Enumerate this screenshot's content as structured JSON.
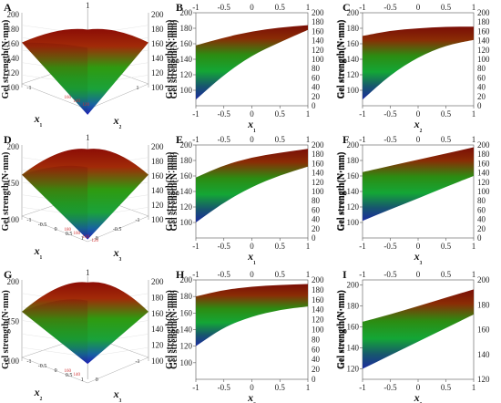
{
  "figure": {
    "shared_ylabel": "Gel strength(N·mm)"
  },
  "chart_data": [
    {
      "panel": "A",
      "type": "surface",
      "view": "3d",
      "xlabel": "x₁",
      "ylabel": "x₂",
      "zlabel": "Gel strength(N·mm)",
      "z_ticks_left": [
        "200",
        "180",
        "160",
        "140",
        "120",
        "100"
      ],
      "z_ticks_right": [
        "200",
        "180",
        "160",
        "140",
        "120",
        "100"
      ],
      "x_ticks": [
        "-1"
      ],
      "y_ticks": [
        "1"
      ],
      "top_ticks": [
        "1"
      ],
      "contour_labels": [
        "160",
        "140",
        "120"
      ],
      "z_range": [
        80,
        205
      ],
      "surface": {
        "peak": 175,
        "edge": 165,
        "valley": 90
      }
    },
    {
      "panel": "B",
      "type": "area_band",
      "view": "side",
      "xlabel": "x₁",
      "ylabel": "Gel strength(N·mm)",
      "x": [
        -1,
        -0.5,
        0,
        0.5,
        1
      ],
      "x_ticks": [
        "-1",
        "-0.5",
        "0",
        "0.5",
        "1"
      ],
      "top_ticks": [
        "-1",
        "-0.5",
        "0",
        "0.5",
        "1"
      ],
      "y_ticks": [
        "100",
        "120",
        "140",
        "160",
        "180",
        "200"
      ],
      "y_ticks_right": [
        "0",
        "20",
        "40",
        "60",
        "80",
        "100",
        "120",
        "140",
        "160",
        "180",
        "200"
      ],
      "ylim": [
        80,
        200
      ],
      "upper": [
        158,
        168,
        176,
        181,
        184
      ],
      "lower": [
        88,
        120,
        145,
        162,
        178
      ]
    },
    {
      "panel": "C",
      "type": "area_band",
      "view": "side",
      "xlabel": "x₂",
      "ylabel": "Gel strength(N·mm)",
      "x": [
        -1,
        -0.5,
        0,
        0.5,
        1
      ],
      "x_ticks": [
        "-1",
        "-0.5",
        "0",
        "0.5",
        "1"
      ],
      "top_ticks": [
        "-1",
        "-0.5",
        "0",
        "0.5",
        "1"
      ],
      "y_ticks": [
        "100",
        "120",
        "140",
        "160",
        "180",
        "200"
      ],
      "y_ticks_right": [
        "0",
        "20",
        "40",
        "60",
        "80",
        "100",
        "120",
        "140",
        "160",
        "180",
        "200"
      ],
      "ylim": [
        80,
        200
      ],
      "upper": [
        170,
        177,
        180,
        182,
        182
      ],
      "lower": [
        88,
        120,
        143,
        158,
        165
      ]
    },
    {
      "panel": "D",
      "type": "surface",
      "view": "3d",
      "xlabel": "x₁",
      "ylabel": "x₃",
      "zlabel": "Gel strength(N·mm)",
      "z_ticks_left": [
        "200",
        "150",
        "100"
      ],
      "z_ticks_right": [
        "200",
        "180",
        "160",
        "140",
        "120",
        "100"
      ],
      "x_ticks": [
        "-1",
        "-0.5",
        "0",
        "0.5",
        "1"
      ],
      "y_ticks": [
        "0",
        "-0.5",
        "-1"
      ],
      "top_ticks": [
        "1"
      ],
      "contour_labels": [
        "180",
        "160",
        "140",
        "120"
      ],
      "z_range": [
        80,
        205
      ],
      "surface": {
        "peak": 192,
        "edge": 165,
        "valley": 100
      }
    },
    {
      "panel": "E",
      "type": "area_band",
      "view": "side",
      "xlabel": "x₁",
      "ylabel": "Gel strength(N·mm)",
      "x": [
        -1,
        -0.5,
        0,
        0.5,
        1
      ],
      "x_ticks": [
        "-1",
        "-0.5",
        "0",
        "0.5",
        "1"
      ],
      "top_ticks": [
        "-1",
        "-0.5",
        "0",
        "0.5",
        "1"
      ],
      "y_ticks": [
        "100",
        "120",
        "140",
        "160",
        "180",
        "200"
      ],
      "y_ticks_right": [
        "0",
        "20",
        "40",
        "60",
        "80",
        "100",
        "120",
        "140",
        "160",
        "180",
        "200"
      ],
      "ylim": [
        80,
        200
      ],
      "upper": [
        158,
        174,
        184,
        190,
        195
      ],
      "lower": [
        100,
        126,
        146,
        161,
        172
      ]
    },
    {
      "panel": "F",
      "type": "area_band",
      "view": "side",
      "xlabel": "x₃",
      "ylabel": "Gel strength(N·mm)",
      "x": [
        -1,
        -0.5,
        0,
        0.5,
        1
      ],
      "x_ticks": [
        "-1",
        "-0.5",
        "0",
        "0.5",
        "1"
      ],
      "top_ticks": [
        "-1",
        "-0.5",
        "0",
        "0.5",
        "1"
      ],
      "y_ticks": [
        "100",
        "120",
        "140",
        "160",
        "180",
        "200"
      ],
      "y_ticks_right": [
        "0",
        "20",
        "40",
        "60",
        "80",
        "100",
        "120",
        "140",
        "160",
        "180",
        "200"
      ],
      "ylim": [
        80,
        200
      ],
      "upper": [
        165,
        173,
        181,
        189,
        197
      ],
      "lower": [
        102,
        117,
        131,
        146,
        160
      ]
    },
    {
      "panel": "G",
      "type": "surface",
      "view": "3d",
      "xlabel": "x₂",
      "ylabel": "x₃",
      "zlabel": "Gel strength(N·mm)",
      "z_ticks_left": [
        "200",
        "150",
        "100"
      ],
      "z_ticks_right": [
        "200",
        "180",
        "160",
        "140",
        "120",
        "100"
      ],
      "x_ticks": [
        "-1",
        "-0.5",
        "0",
        "0.5",
        "1"
      ],
      "y_ticks": [
        "0",
        "-1"
      ],
      "top_ticks": [
        "1"
      ],
      "contour_labels": [
        "160",
        "140"
      ],
      "z_range": [
        80,
        205
      ],
      "surface": {
        "peak": 195,
        "edge": 165,
        "valley": 120
      }
    },
    {
      "panel": "H",
      "type": "area_band",
      "view": "side",
      "xlabel": "x₂",
      "ylabel": "Gel strength(N·mm)",
      "x": [
        -1,
        -0.5,
        0,
        0.5,
        1
      ],
      "x_ticks": [
        "-1",
        "-0.5",
        "0",
        "0.5",
        "1"
      ],
      "top_ticks": [
        "-1",
        "-0.5",
        "0",
        "0.5",
        "1"
      ],
      "y_ticks": [
        "100",
        "120",
        "140",
        "160",
        "180",
        "200"
      ],
      "y_ticks_right": [
        "0",
        "20",
        "40",
        "60",
        "80",
        "100",
        "120",
        "140",
        "160",
        "180",
        "200"
      ],
      "ylim": [
        80,
        200
      ],
      "upper": [
        180,
        188,
        192,
        194,
        195
      ],
      "lower": [
        120,
        143,
        156,
        164,
        168
      ]
    },
    {
      "panel": "I",
      "type": "area_band",
      "view": "side",
      "xlabel": "x₃",
      "ylabel": "Gel strength(N·mm)",
      "x": [
        -1,
        -0.5,
        0,
        0.5,
        1
      ],
      "x_ticks": [
        "-1",
        "-0.5",
        "0",
        "0.5",
        "1"
      ],
      "top_ticks": [
        "-1",
        "-0.5",
        "0",
        "0.5",
        "1"
      ],
      "y_ticks": [
        "120",
        "140",
        "160",
        "180",
        "200"
      ],
      "y_ticks_right": [
        "120",
        "140",
        "160",
        "180",
        "200"
      ],
      "ylim": [
        110,
        205
      ],
      "upper": [
        165,
        172,
        180,
        188,
        196
      ],
      "lower": [
        120,
        133,
        146,
        159,
        172
      ]
    }
  ]
}
